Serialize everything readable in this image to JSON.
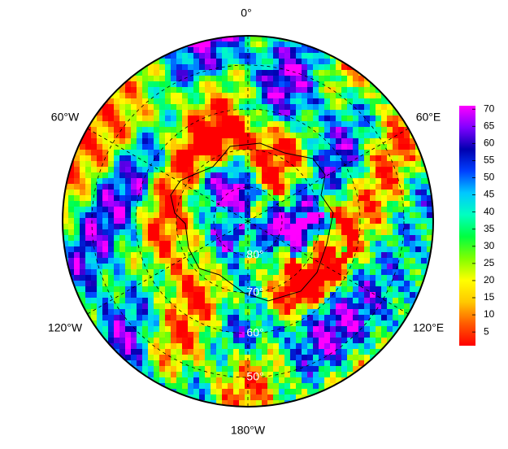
{
  "map": {
    "longitude_labels": [
      "0°",
      "60°E",
      "120°E",
      "180°W",
      "120°W",
      "60°W"
    ],
    "latitude_labels": [
      "80°",
      "70°",
      "60°",
      "50°"
    ],
    "colorbar": {
      "range": [
        1,
        71
      ],
      "ticks": [
        5,
        10,
        15,
        20,
        25,
        30,
        35,
        40,
        45,
        50,
        55,
        60,
        65,
        70
      ],
      "colors": [
        "#ff0000",
        "#ff5a00",
        "#ffc800",
        "#ffff00",
        "#80ff00",
        "#00ff40",
        "#00ffc0",
        "#00c8ff",
        "#0040ff",
        "#0000b0",
        "#8000ff",
        "#ff00ff"
      ]
    }
  }
}
